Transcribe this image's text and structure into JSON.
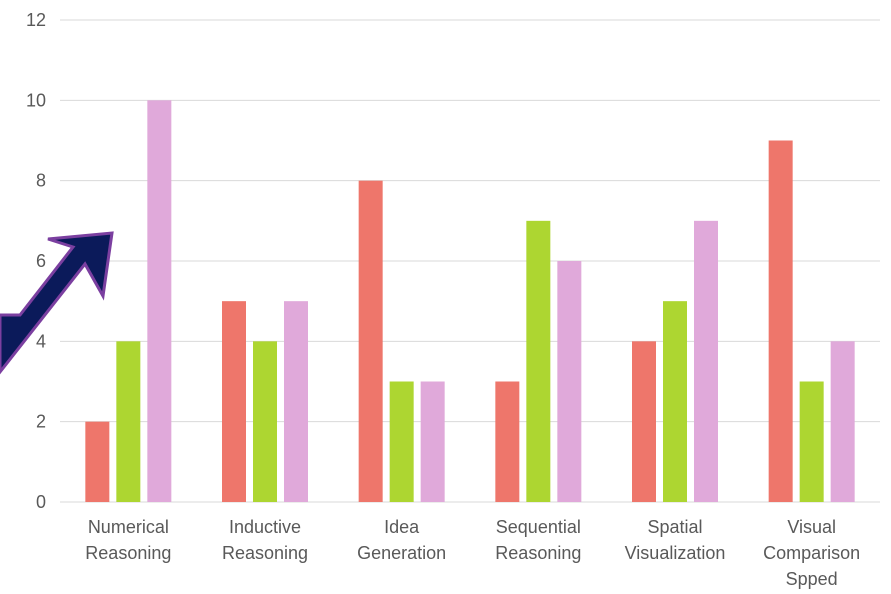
{
  "chart_data": {
    "type": "bar",
    "categories": [
      [
        "Numerical",
        "Reasoning"
      ],
      [
        "Inductive",
        "Reasoning"
      ],
      [
        "Idea",
        "Generation"
      ],
      [
        "Sequential",
        "Reasoning"
      ],
      [
        "Spatial",
        "Visualization"
      ],
      [
        "Visual",
        "Comparison",
        "Spped"
      ]
    ],
    "series": [
      {
        "values": [
          2,
          5,
          8,
          3,
          4,
          9
        ],
        "color": "#ee766b"
      },
      {
        "values": [
          4,
          4,
          3,
          7,
          5,
          3
        ],
        "color": "#add631"
      },
      {
        "values": [
          10,
          5,
          3,
          6,
          7,
          4
        ],
        "color": "#e0a9da"
      }
    ],
    "ylim": [
      0,
      12
    ],
    "yticks": [
      0,
      2,
      4,
      6,
      8,
      10,
      12
    ],
    "grid": true,
    "legend": "none",
    "annotation": {
      "type": "arrow",
      "color": "#0b1a5a",
      "outline": "#7b3fa0",
      "points_to": "Numerical Reasoning"
    }
  }
}
